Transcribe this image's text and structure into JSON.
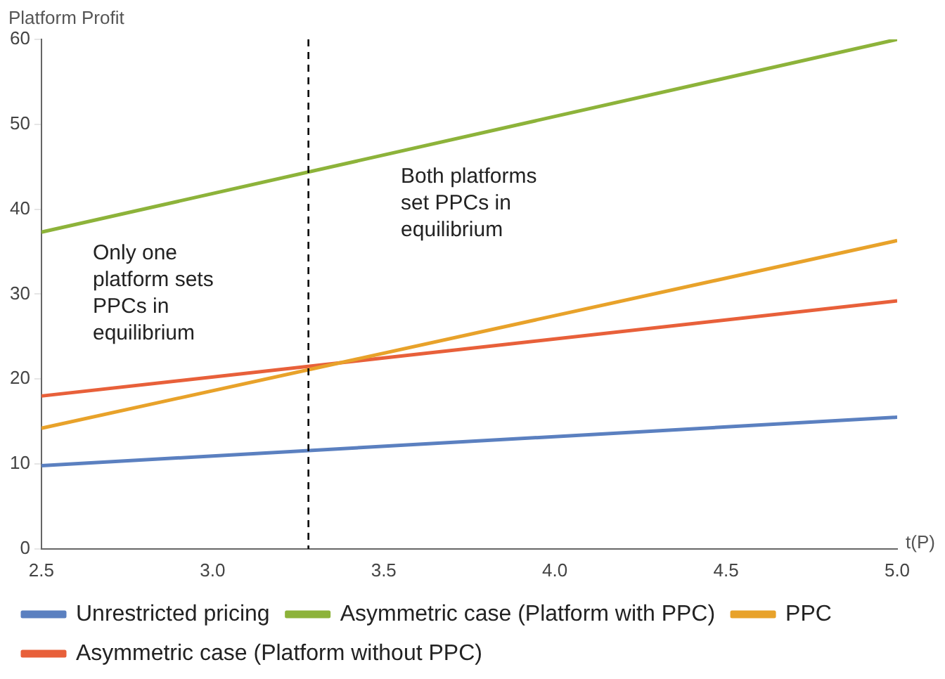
{
  "chart_data": {
    "type": "line",
    "ylabel": "Platform Profit",
    "xlabel": "t(P)",
    "xlim": [
      2.5,
      5.0
    ],
    "xticks": [
      {
        "value": 2.5,
        "label": "2.5"
      },
      {
        "value": 3,
        "label": "3.0"
      },
      {
        "value": 3.5,
        "label": "3.5"
      },
      {
        "value": 4,
        "label": "4.0"
      },
      {
        "value": 4.5,
        "label": "4.5"
      },
      {
        "value": 5,
        "label": "5.0"
      }
    ],
    "x": [
      2.5,
      5.0
    ],
    "ylim": [
      0,
      60
    ],
    "yticks": [
      0,
      10,
      20,
      30,
      40,
      50,
      60
    ],
    "grid": false,
    "legend": "bottom",
    "marker": "none",
    "line_style": "solid",
    "series": [
      {
        "name": "Unrestricted pricing",
        "color": "#5b80c0",
        "values": [
          9.8,
          15.5
        ]
      },
      {
        "name": "Asymmetric case (Platform with PPC)",
        "color": "#8db33a",
        "values": [
          37.3,
          60
        ]
      },
      {
        "name": "PPC",
        "color": "#e8a22a",
        "values": [
          14.2,
          36.3
        ]
      },
      {
        "name": "Asymmetric case (Platform without PPC)",
        "color": "#e8603a",
        "values": [
          18,
          29.2
        ]
      }
    ],
    "ref_lines": [
      {
        "axis": "x",
        "value": 3.28,
        "color": "#000000",
        "line_style": "dashed"
      }
    ],
    "annotations": [
      "Only one platform sets PPCs in equilibrium",
      "Both platforms set PPCs in equilibrium"
    ]
  }
}
